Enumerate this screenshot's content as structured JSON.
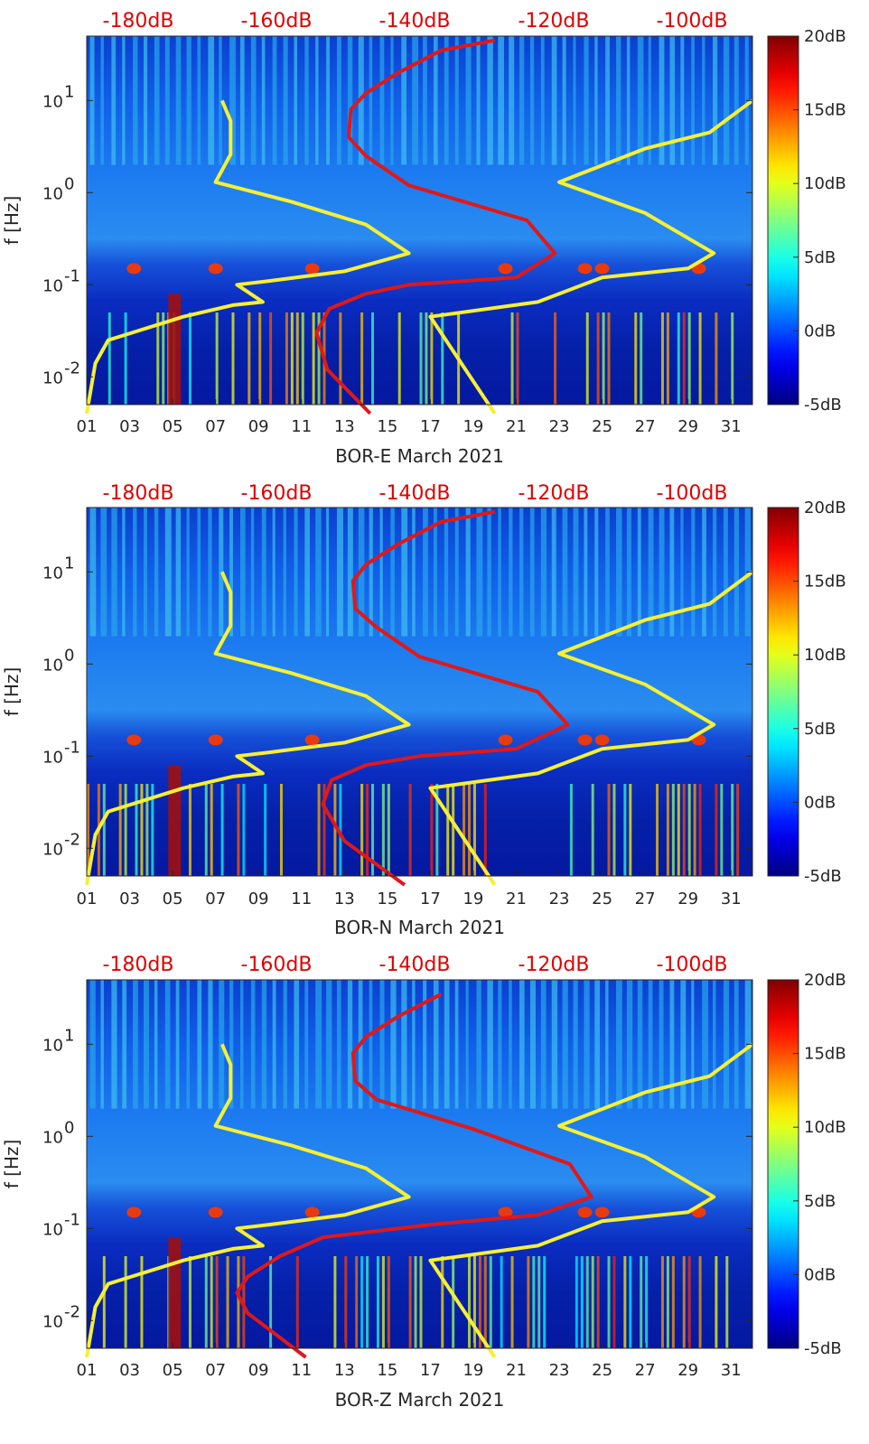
{
  "colors": {
    "yellow_curve": "#f5f035",
    "red_curve": "#e01818",
    "top_scale_text": "#e00000",
    "background_min": "#00008f",
    "background_max": "#800000"
  },
  "colorbar": {
    "ticks": [
      "20dB",
      "15dB",
      "10dB",
      "5dB",
      "0dB",
      "-5dB"
    ],
    "range": [
      -5,
      20
    ],
    "colormap": "jet"
  },
  "top_scale_labels": [
    "-180dB",
    "-160dB",
    "-140dB",
    "-120dB",
    "-100dB"
  ],
  "y_axis": {
    "label": "f [Hz]",
    "tick_labels": [
      "10",
      "10",
      "10",
      "10"
    ],
    "tick_exponents": [
      "1",
      "0",
      "-1",
      "-2"
    ],
    "scale": "log",
    "range": [
      0.005,
      50
    ]
  },
  "x_axis": {
    "tick_labels": [
      "01",
      "03",
      "05",
      "07",
      "09",
      "11",
      "13",
      "15",
      "17",
      "19",
      "21",
      "23",
      "25",
      "27",
      "29",
      "31"
    ],
    "range_days": [
      1,
      32
    ]
  },
  "chart_data": [
    {
      "type": "heatmap",
      "xlabel": "BOR-E March 2021",
      "ylabel": "f [Hz]",
      "yellow_curve": {
        "x_day": [
          1.0,
          1.4,
          2.0,
          5.5,
          7.8,
          9.2,
          8.0,
          9.5,
          13.0,
          16.0,
          14.0,
          10.5,
          7.0,
          7.7,
          7.7,
          7.3
        ],
        "f_hz": [
          0.004,
          0.014,
          0.025,
          0.045,
          0.06,
          0.065,
          0.1,
          0.11,
          0.14,
          0.22,
          0.45,
          0.8,
          1.3,
          2.6,
          6.0,
          10.0
        ],
        "x_day_b": [
          32.0,
          30.0,
          27.0,
          23.0,
          27.0,
          30.2,
          29.0,
          25.0,
          22.0,
          17.0,
          20.0
        ],
        "f_hz_b": [
          10.0,
          4.5,
          3.0,
          1.3,
          0.6,
          0.22,
          0.15,
          0.12,
          0.065,
          0.045,
          0.004
        ]
      },
      "red_curve": {
        "x_day": [
          14.2,
          12.2,
          11.7,
          12.3,
          14.0,
          16.0,
          21.0,
          22.8,
          21.5,
          16.0,
          14.0,
          13.2,
          13.3,
          14.0,
          15.5,
          17.5,
          20.0
        ],
        "f_hz": [
          0.004,
          0.012,
          0.03,
          0.055,
          0.08,
          0.1,
          0.12,
          0.22,
          0.5,
          1.2,
          2.5,
          4.0,
          8.0,
          12.0,
          20.0,
          35.0,
          45.0
        ]
      }
    },
    {
      "type": "heatmap",
      "xlabel": "BOR-N March 2021",
      "ylabel": "f [Hz]",
      "yellow_curve": {
        "x_day": [
          1.0,
          1.4,
          2.0,
          5.5,
          7.8,
          9.2,
          8.0,
          9.5,
          13.0,
          16.0,
          14.0,
          10.5,
          7.0,
          7.7,
          7.7,
          7.3
        ],
        "f_hz": [
          0.004,
          0.014,
          0.025,
          0.045,
          0.06,
          0.065,
          0.1,
          0.11,
          0.14,
          0.22,
          0.45,
          0.8,
          1.3,
          2.6,
          6.0,
          10.0
        ],
        "x_day_b": [
          32.0,
          30.0,
          27.0,
          23.0,
          27.0,
          30.2,
          29.0,
          25.0,
          22.0,
          17.0,
          20.0
        ],
        "f_hz_b": [
          10.0,
          4.5,
          3.0,
          1.3,
          0.6,
          0.22,
          0.15,
          0.12,
          0.065,
          0.045,
          0.004
        ]
      },
      "red_curve": {
        "x_day": [
          15.8,
          13.0,
          12.0,
          12.4,
          14.0,
          16.5,
          21.0,
          23.4,
          22.0,
          16.5,
          14.5,
          13.5,
          13.4,
          14.0,
          15.5,
          17.5,
          20.0
        ],
        "f_hz": [
          0.004,
          0.012,
          0.03,
          0.055,
          0.08,
          0.1,
          0.12,
          0.22,
          0.5,
          1.2,
          2.5,
          4.0,
          8.0,
          12.0,
          20.0,
          35.0,
          45.0
        ]
      }
    },
    {
      "type": "heatmap",
      "xlabel": "BOR-Z March 2021",
      "ylabel": "f [Hz]",
      "yellow_curve": {
        "x_day": [
          1.0,
          1.4,
          2.0,
          5.5,
          7.8,
          9.2,
          8.0,
          9.5,
          13.0,
          16.0,
          14.0,
          10.5,
          7.0,
          7.7,
          7.7,
          7.3
        ],
        "f_hz": [
          0.004,
          0.014,
          0.025,
          0.045,
          0.06,
          0.065,
          0.1,
          0.11,
          0.14,
          0.22,
          0.45,
          0.8,
          1.3,
          2.6,
          6.0,
          10.0
        ],
        "x_day_b": [
          32.0,
          30.0,
          27.0,
          23.0,
          27.0,
          30.2,
          29.0,
          25.0,
          22.0,
          17.0,
          20.0
        ],
        "f_hz_b": [
          10.0,
          4.5,
          3.0,
          1.3,
          0.6,
          0.22,
          0.15,
          0.12,
          0.065,
          0.045,
          0.004
        ]
      },
      "red_curve": {
        "x_day": [
          11.2,
          8.5,
          8.0,
          8.5,
          10.0,
          12.0,
          17.0,
          22.0,
          24.5,
          23.5,
          19.0,
          14.5,
          13.5,
          13.4,
          14.0,
          15.5,
          17.5
        ],
        "f_hz": [
          0.004,
          0.012,
          0.02,
          0.03,
          0.05,
          0.08,
          0.11,
          0.14,
          0.22,
          0.5,
          1.2,
          2.5,
          4.0,
          8.0,
          12.0,
          20.0,
          35.0
        ]
      }
    }
  ]
}
